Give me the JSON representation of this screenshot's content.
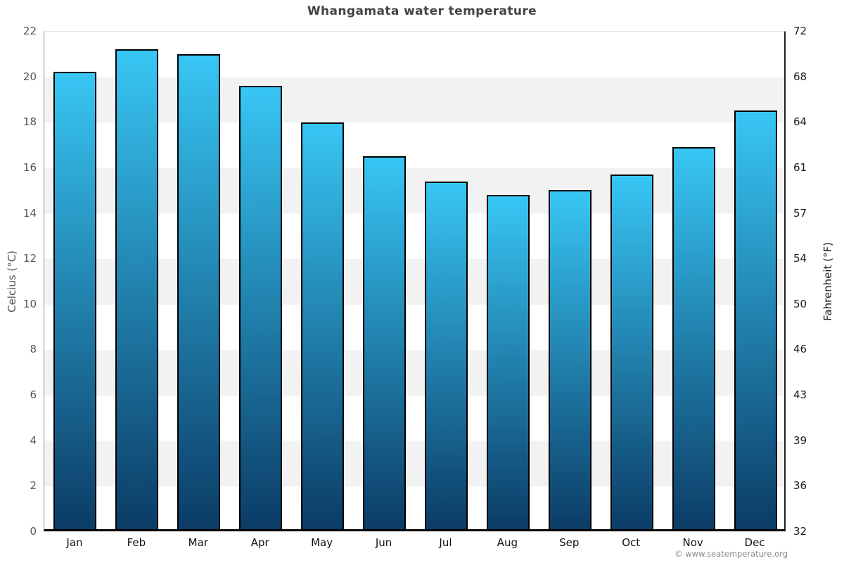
{
  "chart_data": {
    "type": "bar",
    "title": "Whangamata water temperature",
    "categories": [
      "Jan",
      "Feb",
      "Mar",
      "Apr",
      "May",
      "Jun",
      "Jul",
      "Aug",
      "Sep",
      "Oct",
      "Nov",
      "Dec"
    ],
    "values": [
      20.1,
      21.1,
      20.9,
      19.5,
      17.9,
      16.4,
      15.3,
      14.7,
      14.9,
      15.6,
      16.8,
      18.4
    ],
    "ylabel_left": "Celcius (°C)",
    "ylabel_right": "Fahrenheit (°F)",
    "ylim": [
      0,
      22
    ],
    "yticks_left": [
      0,
      2,
      4,
      6,
      8,
      10,
      12,
      14,
      16,
      18,
      20,
      22
    ],
    "yticks_right": [
      32,
      36,
      39,
      43,
      46,
      50,
      54,
      57,
      61,
      64,
      68,
      72
    ],
    "legend": "none",
    "grid": "alternating horizontal bands every 2 degrees C",
    "colors": {
      "bar_gradient_top": "#38c6f4",
      "bar_gradient_bottom": "#0b3c66",
      "bar_border": "#000000",
      "band_gray": "#f2f2f2",
      "band_white": "#ffffff",
      "title_text": "#444444",
      "left_axis_text": "#555555",
      "right_axis_text": "#1a1a1a"
    }
  },
  "footer": {
    "copyright": "© www.seatemperature.org"
  }
}
